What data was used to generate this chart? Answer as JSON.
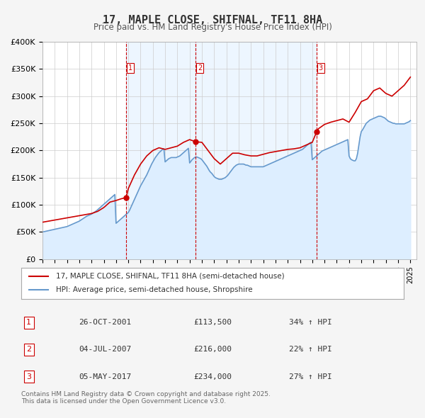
{
  "title": "17, MAPLE CLOSE, SHIFNAL, TF11 8HA",
  "subtitle": "Price paid vs. HM Land Registry's House Price Index (HPI)",
  "legend_line1": "17, MAPLE CLOSE, SHIFNAL, TF11 8HA (semi-detached house)",
  "legend_line2": "HPI: Average price, semi-detached house, Shropshire",
  "sale_color": "#cc0000",
  "hpi_color": "#6699cc",
  "hpi_fill_color": "#ddeeff",
  "background_color": "#f5f5f5",
  "plot_bg_color": "#ffffff",
  "grid_color": "#cccccc",
  "sale_marker_color": "#cc0000",
  "vline_color": "#cc0000",
  "ylabel": "£",
  "ylim": [
    0,
    400000
  ],
  "yticks": [
    0,
    50000,
    100000,
    150000,
    200000,
    250000,
    300000,
    350000,
    400000
  ],
  "ytick_labels": [
    "£0",
    "£50K",
    "£100K",
    "£150K",
    "£200K",
    "£250K",
    "£300K",
    "£350K",
    "£400K"
  ],
  "xlim_start": 1995.0,
  "xlim_end": 2025.5,
  "sales": [
    {
      "label": "1",
      "date_num": 2001.82,
      "price": 113500,
      "hpi_pct": "34%",
      "date_str": "26-OCT-2001"
    },
    {
      "label": "2",
      "date_num": 2007.5,
      "price": 216000,
      "hpi_pct": "22%",
      "date_str": "04-JUL-2007"
    },
    {
      "label": "3",
      "date_num": 2017.35,
      "price": 234000,
      "hpi_pct": "27%",
      "date_str": "05-MAY-2017"
    }
  ],
  "footnote": "Contains HM Land Registry data © Crown copyright and database right 2025.\nThis data is licensed under the Open Government Licence v3.0.",
  "hpi_data": {
    "years": [
      1995.0,
      1995.1,
      1995.2,
      1995.3,
      1995.4,
      1995.5,
      1995.6,
      1995.7,
      1995.8,
      1995.9,
      1996.0,
      1996.1,
      1996.2,
      1996.3,
      1996.4,
      1996.5,
      1996.6,
      1996.7,
      1996.8,
      1996.9,
      1997.0,
      1997.1,
      1997.2,
      1997.3,
      1997.4,
      1997.5,
      1997.6,
      1997.7,
      1997.8,
      1997.9,
      1998.0,
      1998.1,
      1998.2,
      1998.3,
      1998.4,
      1998.5,
      1998.6,
      1998.7,
      1998.8,
      1998.9,
      1999.0,
      1999.1,
      1999.2,
      1999.3,
      1999.4,
      1999.5,
      1999.6,
      1999.7,
      1999.8,
      1999.9,
      2000.0,
      2000.1,
      2000.2,
      2000.3,
      2000.4,
      2000.5,
      2000.6,
      2000.7,
      2000.8,
      2000.9,
      2001.0,
      2001.1,
      2001.2,
      2001.3,
      2001.4,
      2001.5,
      2001.6,
      2001.7,
      2001.8,
      2001.9,
      2002.0,
      2002.1,
      2002.2,
      2002.3,
      2002.4,
      2002.5,
      2002.6,
      2002.7,
      2002.8,
      2002.9,
      2003.0,
      2003.1,
      2003.2,
      2003.3,
      2003.4,
      2003.5,
      2003.6,
      2003.7,
      2003.8,
      2003.9,
      2004.0,
      2004.1,
      2004.2,
      2004.3,
      2004.4,
      2004.5,
      2004.6,
      2004.7,
      2004.8,
      2004.9,
      2005.0,
      2005.1,
      2005.2,
      2005.3,
      2005.4,
      2005.5,
      2005.6,
      2005.7,
      2005.8,
      2005.9,
      2006.0,
      2006.1,
      2006.2,
      2006.3,
      2006.4,
      2006.5,
      2006.6,
      2006.7,
      2006.8,
      2006.9,
      2007.0,
      2007.1,
      2007.2,
      2007.3,
      2007.4,
      2007.5,
      2007.6,
      2007.7,
      2007.8,
      2007.9,
      2008.0,
      2008.1,
      2008.2,
      2008.3,
      2008.4,
      2008.5,
      2008.6,
      2008.7,
      2008.8,
      2008.9,
      2009.0,
      2009.1,
      2009.2,
      2009.3,
      2009.4,
      2009.5,
      2009.6,
      2009.7,
      2009.8,
      2009.9,
      2010.0,
      2010.1,
      2010.2,
      2010.3,
      2010.4,
      2010.5,
      2010.6,
      2010.7,
      2010.8,
      2010.9,
      2011.0,
      2011.1,
      2011.2,
      2011.3,
      2011.4,
      2011.5,
      2011.6,
      2011.7,
      2011.8,
      2011.9,
      2012.0,
      2012.1,
      2012.2,
      2012.3,
      2012.4,
      2012.5,
      2012.6,
      2012.7,
      2012.8,
      2012.9,
      2013.0,
      2013.1,
      2013.2,
      2013.3,
      2013.4,
      2013.5,
      2013.6,
      2013.7,
      2013.8,
      2013.9,
      2014.0,
      2014.1,
      2014.2,
      2014.3,
      2014.4,
      2014.5,
      2014.6,
      2014.7,
      2014.8,
      2014.9,
      2015.0,
      2015.1,
      2015.2,
      2015.3,
      2015.4,
      2015.5,
      2015.6,
      2015.7,
      2015.8,
      2015.9,
      2016.0,
      2016.1,
      2016.2,
      2016.3,
      2016.4,
      2016.5,
      2016.6,
      2016.7,
      2016.8,
      2016.9,
      2017.0,
      2017.1,
      2017.2,
      2017.3,
      2017.4,
      2017.5,
      2017.6,
      2017.7,
      2017.8,
      2017.9,
      2018.0,
      2018.1,
      2018.2,
      2018.3,
      2018.4,
      2018.5,
      2018.6,
      2018.7,
      2018.8,
      2018.9,
      2019.0,
      2019.1,
      2019.2,
      2019.3,
      2019.4,
      2019.5,
      2019.6,
      2019.7,
      2019.8,
      2019.9,
      2020.0,
      2020.1,
      2020.2,
      2020.3,
      2020.4,
      2020.5,
      2020.6,
      2020.7,
      2020.8,
      2020.9,
      2021.0,
      2021.1,
      2021.2,
      2021.3,
      2021.4,
      2021.5,
      2021.6,
      2021.7,
      2021.8,
      2021.9,
      2022.0,
      2022.1,
      2022.2,
      2022.3,
      2022.4,
      2022.5,
      2022.6,
      2022.7,
      2022.8,
      2022.9,
      2023.0,
      2023.1,
      2023.2,
      2023.3,
      2023.4,
      2023.5,
      2023.6,
      2023.7,
      2023.8,
      2023.9,
      2024.0,
      2024.1,
      2024.2,
      2024.3,
      2024.4,
      2024.5,
      2024.6,
      2024.7,
      2024.8,
      2024.9,
      2025.0
    ],
    "values": [
      50000,
      50500,
      51000,
      51500,
      52000,
      52500,
      53000,
      53500,
      54000,
      54500,
      55000,
      55500,
      56000,
      56500,
      57000,
      57500,
      58000,
      58500,
      59000,
      59500,
      60000,
      61000,
      62000,
      63000,
      64000,
      65000,
      66000,
      67000,
      68000,
      69000,
      70000,
      71500,
      73000,
      74500,
      76000,
      77500,
      79000,
      80000,
      81000,
      82000,
      83000,
      84500,
      86000,
      87500,
      89000,
      91000,
      93000,
      95000,
      97000,
      99000,
      101000,
      103000,
      105000,
      107000,
      109000,
      111000,
      113000,
      115000,
      117000,
      119000,
      66000,
      68000,
      70000,
      72000,
      74000,
      76000,
      78000,
      80000,
      82000,
      84000,
      86000,
      90000,
      95000,
      100000,
      105000,
      110000,
      115000,
      120000,
      125000,
      130000,
      135000,
      139000,
      143000,
      147000,
      151000,
      155000,
      160000,
      165000,
      170000,
      175000,
      179000,
      183000,
      187000,
      190000,
      193000,
      196000,
      198000,
      200000,
      202000,
      203000,
      179000,
      181000,
      183000,
      185000,
      186000,
      187000,
      187000,
      187000,
      187000,
      187000,
      188000,
      189000,
      190000,
      192000,
      194000,
      196000,
      198000,
      200000,
      202000,
      204000,
      177000,
      180000,
      183000,
      185000,
      187000,
      188000,
      188000,
      187000,
      186000,
      185000,
      183000,
      180000,
      177000,
      174000,
      171000,
      167000,
      163000,
      160000,
      158000,
      155000,
      152000,
      150000,
      149000,
      148000,
      147000,
      147000,
      147000,
      148000,
      149000,
      150000,
      152000,
      154000,
      157000,
      160000,
      163000,
      166000,
      169000,
      171000,
      173000,
      174000,
      175000,
      175000,
      175000,
      175000,
      175000,
      174000,
      173000,
      173000,
      172000,
      171000,
      170000,
      170000,
      170000,
      170000,
      170000,
      170000,
      170000,
      170000,
      170000,
      170000,
      170000,
      171000,
      172000,
      173000,
      174000,
      175000,
      176000,
      177000,
      178000,
      179000,
      180000,
      181000,
      182000,
      183000,
      184000,
      185000,
      186000,
      187000,
      188000,
      189000,
      190000,
      191000,
      192000,
      193000,
      194000,
      195000,
      196000,
      197000,
      198000,
      199000,
      200000,
      201000,
      202000,
      204000,
      206000,
      208000,
      210000,
      212000,
      214000,
      215000,
      183000,
      185000,
      187000,
      189000,
      191000,
      193000,
      195000,
      197000,
      199000,
      200000,
      201000,
      202000,
      203000,
      204000,
      205000,
      206000,
      207000,
      208000,
      209000,
      210000,
      211000,
      212000,
      213000,
      214000,
      215000,
      216000,
      217000,
      218000,
      219000,
      220000,
      190000,
      185000,
      183000,
      182000,
      181000,
      181000,
      185000,
      195000,
      210000,
      225000,
      235000,
      238000,
      242000,
      246000,
      250000,
      252000,
      254000,
      256000,
      257000,
      258000,
      259000,
      260000,
      261000,
      262000,
      263000,
      263000,
      263000,
      262000,
      261000,
      260000,
      258000,
      256000,
      254000,
      253000,
      252000,
      251000,
      250000,
      250000,
      249000,
      249000,
      249000,
      249000,
      249000,
      249000,
      249000,
      249000,
      250000,
      251000,
      252000,
      253000,
      255000
    ]
  },
  "sale_data": {
    "years": [
      1995.0,
      1995.5,
      1996.0,
      1996.5,
      1997.0,
      1997.5,
      1998.0,
      1998.5,
      1999.0,
      1999.5,
      2000.0,
      2000.5,
      2001.0,
      2001.4,
      2001.82,
      2002.0,
      2002.5,
      2003.0,
      2003.5,
      2004.0,
      2004.5,
      2005.0,
      2005.5,
      2006.0,
      2006.5,
      2007.0,
      2007.5,
      2008.0,
      2008.5,
      2009.0,
      2009.5,
      2010.0,
      2010.5,
      2011.0,
      2011.5,
      2012.0,
      2012.5,
      2013.0,
      2013.5,
      2014.0,
      2014.5,
      2015.0,
      2015.5,
      2016.0,
      2016.5,
      2017.0,
      2017.35,
      2017.5,
      2018.0,
      2018.5,
      2019.0,
      2019.5,
      2020.0,
      2020.5,
      2021.0,
      2021.5,
      2022.0,
      2022.5,
      2023.0,
      2023.5,
      2024.0,
      2024.5,
      2025.0
    ],
    "values": [
      68000,
      70000,
      72000,
      74000,
      76000,
      78000,
      80000,
      82000,
      84000,
      88000,
      95000,
      105000,
      108000,
      111000,
      113500,
      130000,
      155000,
      175000,
      190000,
      200000,
      205000,
      202000,
      205000,
      208000,
      215000,
      220000,
      216000,
      215000,
      200000,
      185000,
      175000,
      185000,
      195000,
      195000,
      192000,
      190000,
      190000,
      193000,
      196000,
      198000,
      200000,
      202000,
      203000,
      205000,
      210000,
      215000,
      234000,
      240000,
      248000,
      252000,
      255000,
      258000,
      252000,
      270000,
      290000,
      295000,
      310000,
      315000,
      305000,
      300000,
      310000,
      320000,
      335000
    ]
  }
}
